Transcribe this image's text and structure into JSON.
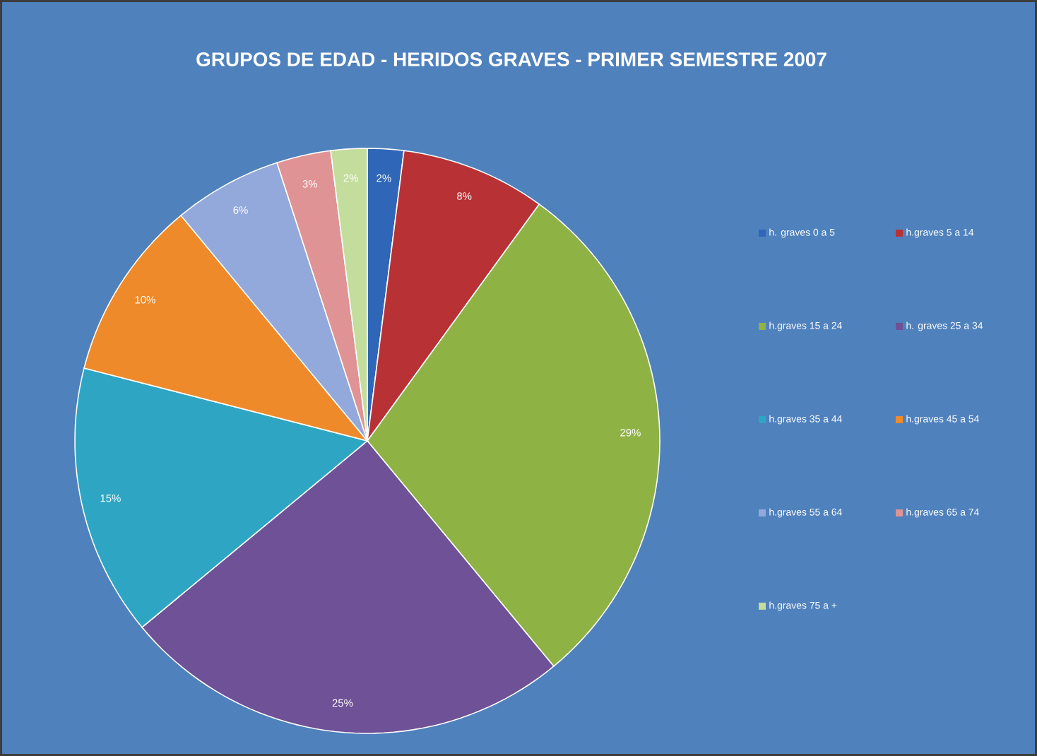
{
  "chart_data": {
    "type": "pie",
    "title": "GRUPOS DE EDAD - HERIDOS  GRAVES - PRIMER SEMESTRE 2007",
    "categories": [
      "h. graves 0 a 5",
      "h.graves 5 a 14",
      "h.graves 15 a 24",
      "h. graves 25 a 34",
      "h.graves 35 a 44",
      "h.graves 45 a 54",
      "h.graves 55 a 64",
      "h.graves 65 a 74",
      "h.graves 75 a +"
    ],
    "values": [
      2,
      8,
      29,
      25,
      15,
      10,
      6,
      3,
      2
    ],
    "value_labels": [
      "2%",
      "8%",
      "29%",
      "25%",
      "15%",
      "10%",
      "6%",
      "3%",
      "2%"
    ],
    "colors": [
      "#2f66b8",
      "#b83235",
      "#8fb244",
      "#6e5196",
      "#2ea6c3",
      "#ef8a2a",
      "#93a9dc",
      "#e09394",
      "#c3dd9c"
    ],
    "legend": "right"
  }
}
